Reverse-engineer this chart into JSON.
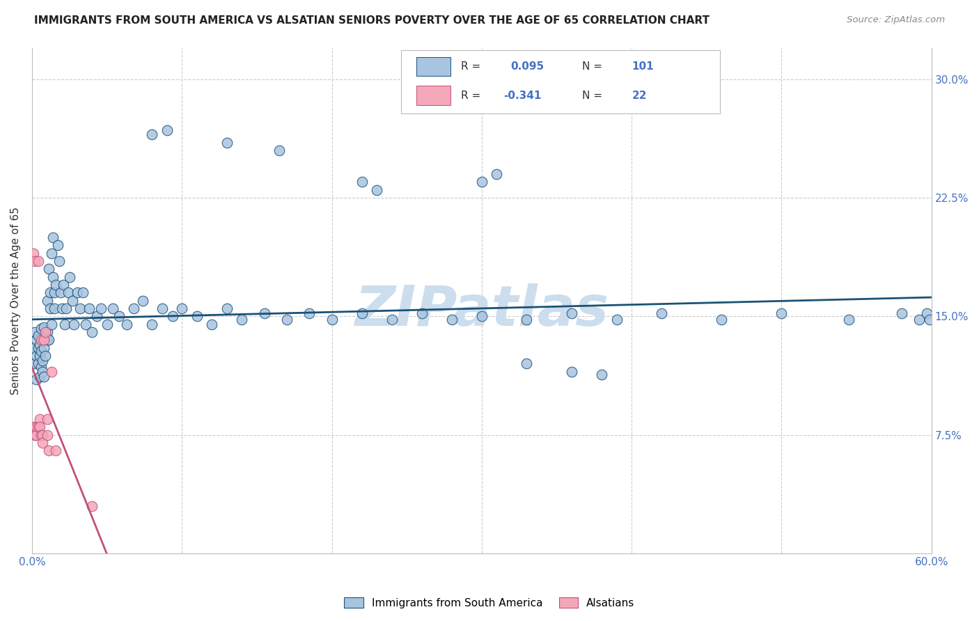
{
  "title": "IMMIGRANTS FROM SOUTH AMERICA VS ALSATIAN SENIORS POVERTY OVER THE AGE OF 65 CORRELATION CHART",
  "source": "Source: ZipAtlas.com",
  "ylabel": "Seniors Poverty Over the Age of 65",
  "xlim": [
    0.0,
    0.6
  ],
  "ylim": [
    0.0,
    0.32
  ],
  "blue_R": 0.095,
  "blue_N": 101,
  "pink_R": -0.341,
  "pink_N": 22,
  "blue_color": "#a8c4e0",
  "pink_color": "#f4a7b9",
  "blue_line_color": "#1a5276",
  "pink_line_color": "#c0507a",
  "title_color": "#222222",
  "watermark": "ZIPatlas",
  "watermark_color": "#ccdded",
  "grid_color": "#cccccc",
  "axis_color": "#bbbbbb",
  "right_tick_color": "#4472c4",
  "blue_x": [
    0.001,
    0.002,
    0.002,
    0.003,
    0.003,
    0.003,
    0.004,
    0.004,
    0.004,
    0.005,
    0.005,
    0.005,
    0.006,
    0.006,
    0.006,
    0.007,
    0.007,
    0.007,
    0.008,
    0.008,
    0.008,
    0.009,
    0.009,
    0.01,
    0.01,
    0.01,
    0.011,
    0.011,
    0.012,
    0.012,
    0.013,
    0.013,
    0.014,
    0.014,
    0.015,
    0.015,
    0.016,
    0.017,
    0.018,
    0.019,
    0.02,
    0.021,
    0.022,
    0.023,
    0.024,
    0.025,
    0.027,
    0.028,
    0.03,
    0.032,
    0.034,
    0.036,
    0.038,
    0.04,
    0.043,
    0.046,
    0.05,
    0.054,
    0.058,
    0.063,
    0.068,
    0.074,
    0.08,
    0.087,
    0.094,
    0.1,
    0.11,
    0.12,
    0.13,
    0.14,
    0.155,
    0.17,
    0.185,
    0.2,
    0.22,
    0.24,
    0.26,
    0.28,
    0.3,
    0.33,
    0.36,
    0.39,
    0.42,
    0.46,
    0.5,
    0.545,
    0.58,
    0.592,
    0.597,
    0.599,
    0.08,
    0.09,
    0.13,
    0.165,
    0.22,
    0.23,
    0.3,
    0.31,
    0.33,
    0.36,
    0.38
  ],
  "blue_y": [
    0.13,
    0.14,
    0.12,
    0.135,
    0.11,
    0.125,
    0.13,
    0.12,
    0.138,
    0.112,
    0.132,
    0.125,
    0.142,
    0.118,
    0.128,
    0.135,
    0.122,
    0.115,
    0.143,
    0.112,
    0.13,
    0.125,
    0.138,
    0.16,
    0.14,
    0.135,
    0.135,
    0.18,
    0.155,
    0.165,
    0.145,
    0.19,
    0.2,
    0.175,
    0.165,
    0.155,
    0.17,
    0.195,
    0.185,
    0.165,
    0.155,
    0.17,
    0.145,
    0.155,
    0.165,
    0.175,
    0.16,
    0.145,
    0.165,
    0.155,
    0.165,
    0.145,
    0.155,
    0.14,
    0.15,
    0.155,
    0.145,
    0.155,
    0.15,
    0.145,
    0.155,
    0.16,
    0.145,
    0.155,
    0.15,
    0.155,
    0.15,
    0.145,
    0.155,
    0.148,
    0.152,
    0.148,
    0.152,
    0.148,
    0.152,
    0.148,
    0.152,
    0.148,
    0.15,
    0.148,
    0.152,
    0.148,
    0.152,
    0.148,
    0.152,
    0.148,
    0.152,
    0.148,
    0.152,
    0.148,
    0.265,
    0.268,
    0.26,
    0.255,
    0.235,
    0.23,
    0.235,
    0.24,
    0.12,
    0.115,
    0.113
  ],
  "pink_x": [
    0.001,
    0.001,
    0.002,
    0.002,
    0.003,
    0.003,
    0.004,
    0.004,
    0.005,
    0.005,
    0.006,
    0.006,
    0.007,
    0.007,
    0.008,
    0.009,
    0.01,
    0.01,
    0.011,
    0.013,
    0.016,
    0.04
  ],
  "pink_y": [
    0.19,
    0.08,
    0.075,
    0.185,
    0.08,
    0.075,
    0.185,
    0.08,
    0.085,
    0.08,
    0.135,
    0.075,
    0.075,
    0.07,
    0.135,
    0.14,
    0.075,
    0.085,
    0.065,
    0.115,
    0.065,
    0.03
  ]
}
